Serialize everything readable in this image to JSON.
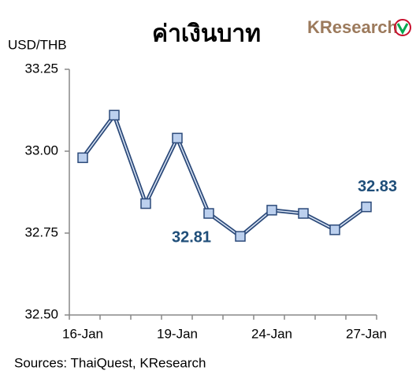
{
  "chart_data": {
    "type": "line",
    "title": "ค่าเงินบาท",
    "logo": "KResearch",
    "y_label": "USD/THB",
    "source": "Sources: ThaiQuest, KResearch",
    "categories": [
      "16-Jan",
      null,
      null,
      "19-Jan",
      null,
      null,
      "24-Jan",
      null,
      null,
      "27-Jan"
    ],
    "series": [
      {
        "name": "USD/THB",
        "color": "#2c4a7a",
        "marker_color": "#bcd0ee",
        "values": [
          32.98,
          33.11,
          32.84,
          33.04,
          32.81,
          32.74,
          32.82,
          32.81,
          32.76,
          32.83
        ],
        "value_labels": [
          null,
          null,
          null,
          null,
          "32.81",
          null,
          null,
          null,
          null,
          "32.83"
        ]
      }
    ],
    "ylim": [
      32.5,
      33.25
    ],
    "yticks": [
      {
        "value": 32.5,
        "label": "32.50"
      },
      32.75,
      {
        "value": 33,
        "label": "33.00"
      },
      33.25
    ],
    "grid": false
  }
}
